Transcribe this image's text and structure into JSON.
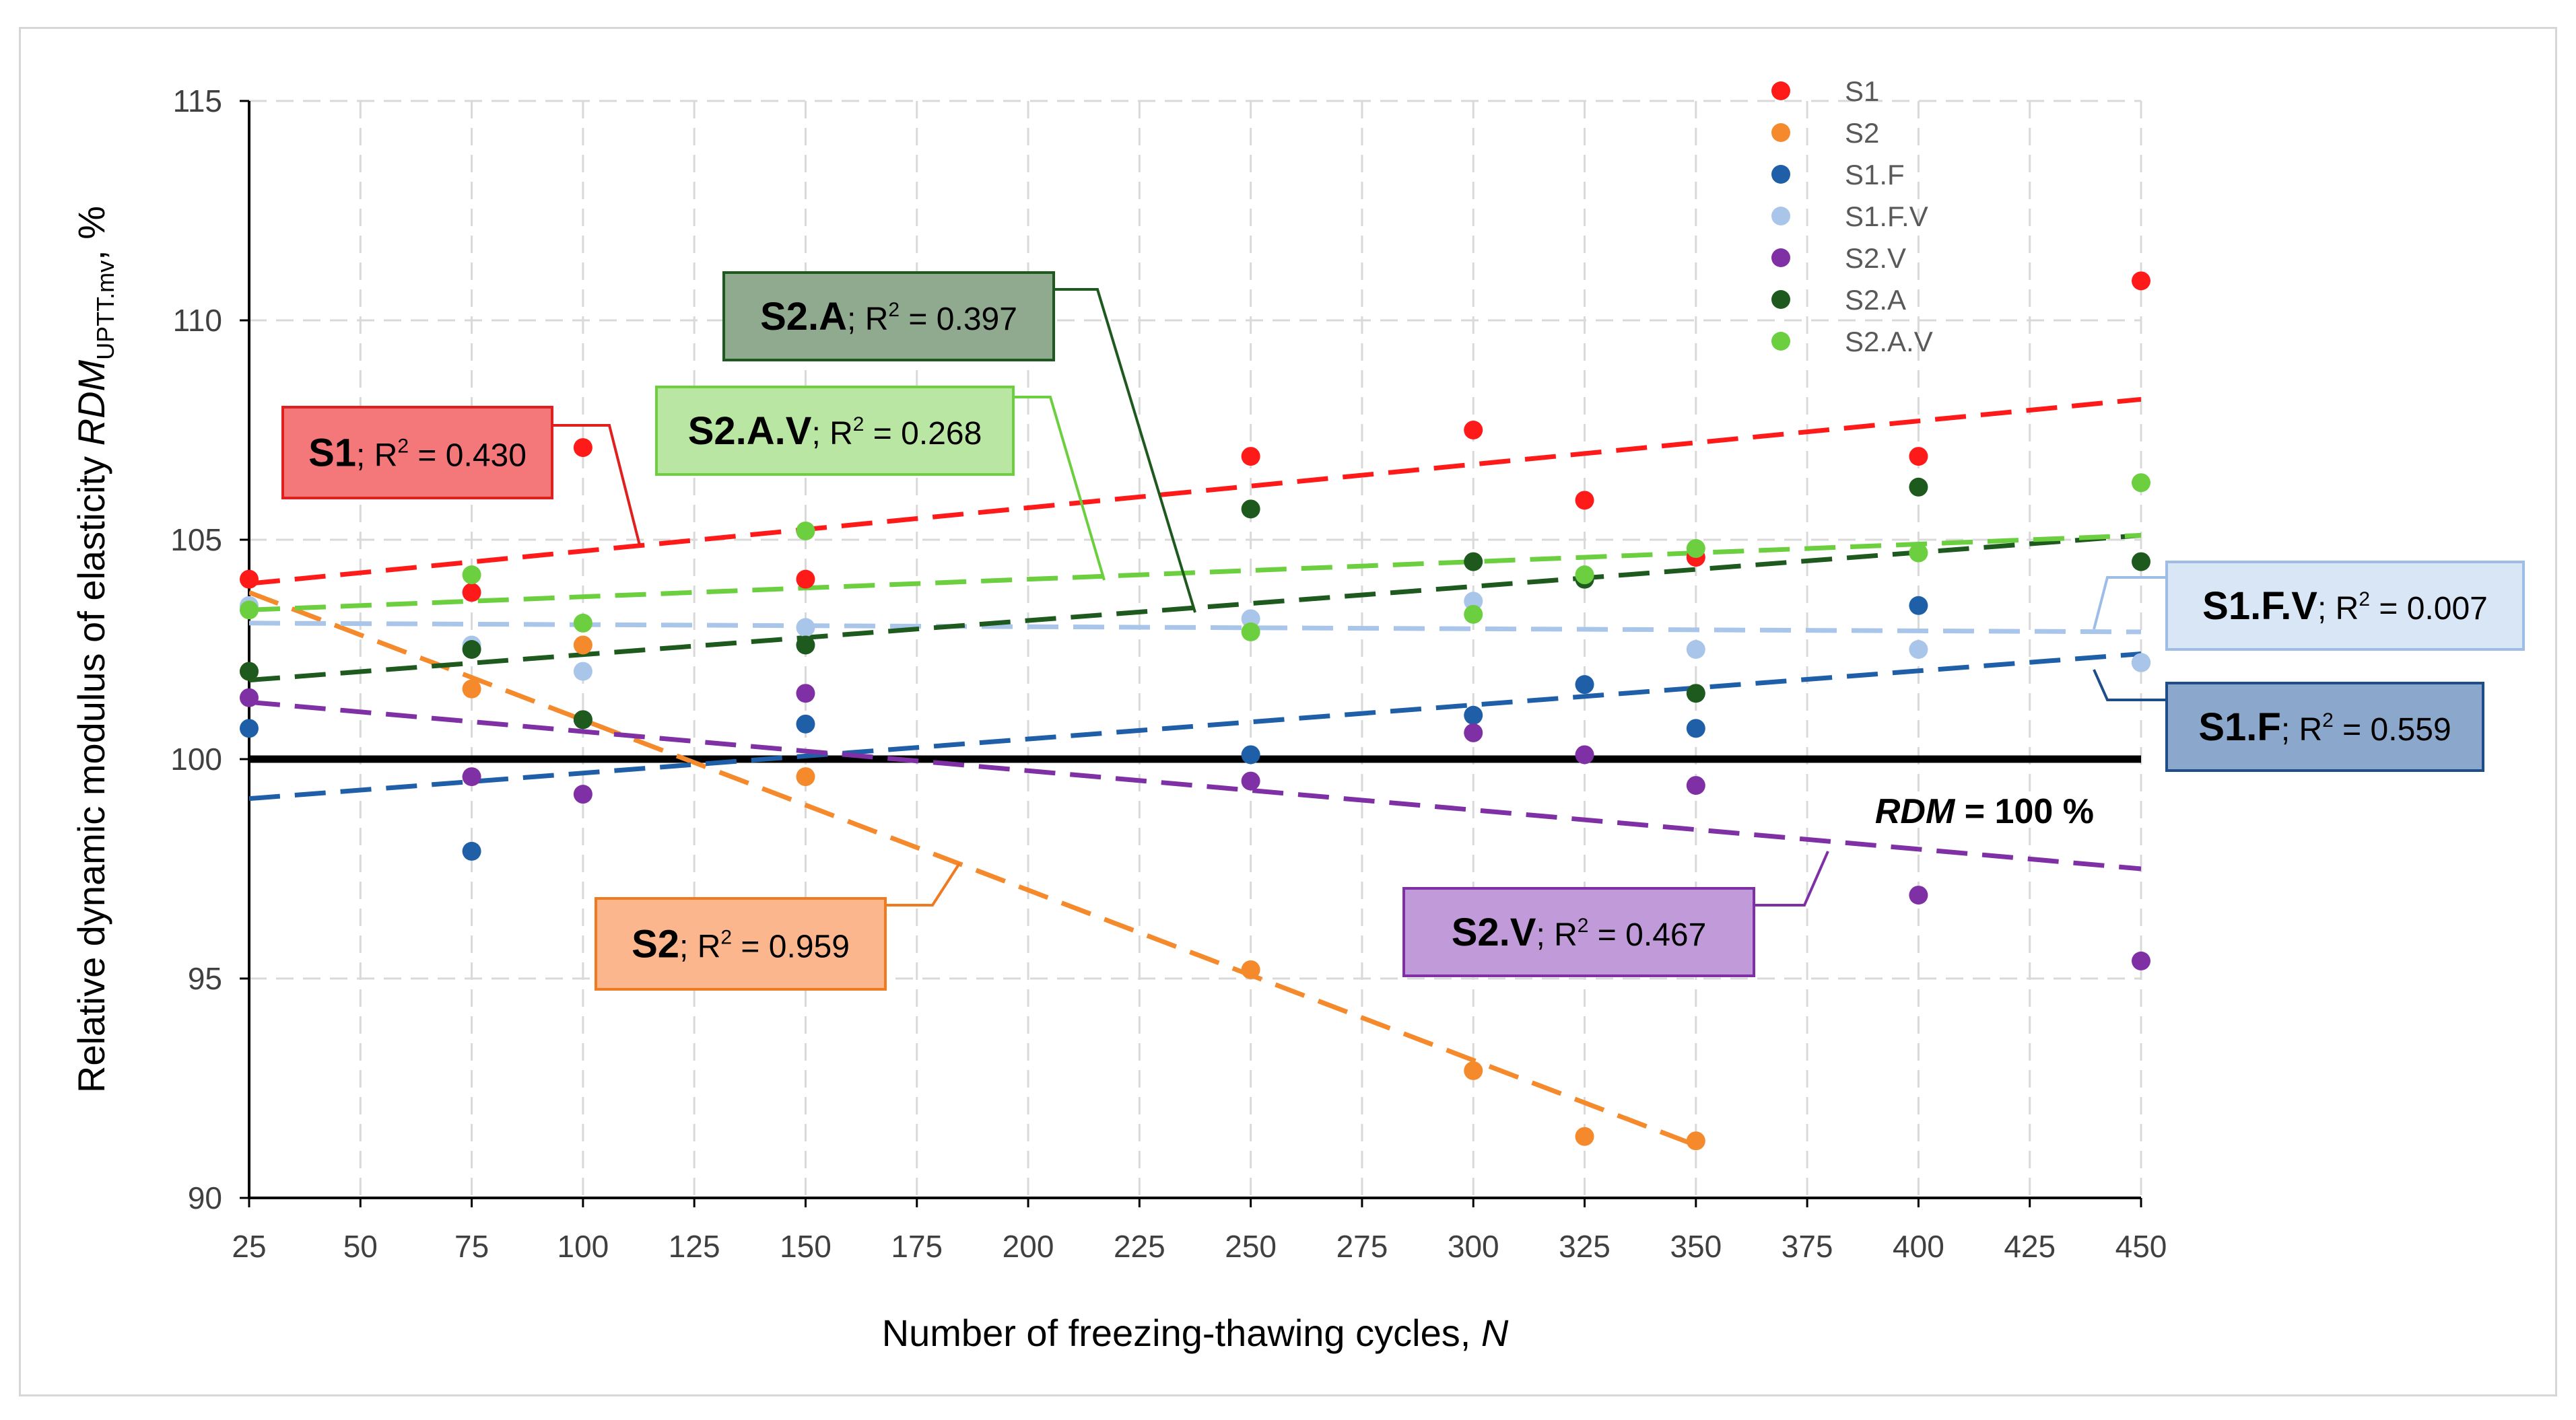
{
  "chart_data": {
    "type": "scatter",
    "xlabel": "Number of freezing-thawing cycles, ",
    "xlabel_var": "N",
    "ylabel_main": "Relative dynamic modulus of elasticity ",
    "ylabel_var": "RDM",
    "ylabel_sub": "UPTT.mv",
    "ylabel_tail": ", %",
    "xlim": [
      25,
      450
    ],
    "ylim": [
      90,
      115
    ],
    "x_ticks": [
      25,
      50,
      75,
      100,
      125,
      150,
      175,
      200,
      225,
      250,
      275,
      300,
      325,
      350,
      375,
      400,
      425,
      450
    ],
    "y_ticks": [
      90,
      95,
      100,
      105,
      110,
      115
    ],
    "grid": true,
    "legend_position": "top-right",
    "reference_line": {
      "y": 100,
      "label_var": "RDM",
      "label_rest": " = 100 %"
    },
    "series": [
      {
        "name": "S1",
        "color": "#ff1a1a",
        "points": [
          [
            25,
            104.1
          ],
          [
            75,
            103.8
          ],
          [
            100,
            107.1
          ],
          [
            150,
            104.1
          ],
          [
            250,
            106.9
          ],
          [
            300,
            107.5
          ],
          [
            325,
            105.9
          ],
          [
            350,
            104.6
          ],
          [
            400,
            106.9
          ],
          [
            450,
            110.9
          ]
        ],
        "trend": [
          [
            25,
            104.0
          ],
          [
            450,
            108.2
          ]
        ],
        "annotation": {
          "name": "S1",
          "r2_text": "; R",
          "r2_sup": "2",
          "r2_value": " = 0.430",
          "fill": "#f4777a",
          "border": "#e01f1f"
        }
      },
      {
        "name": "S2",
        "color": "#f58a2c",
        "points": [
          [
            25,
            102.0
          ],
          [
            75,
            101.6
          ],
          [
            100,
            102.6
          ],
          [
            150,
            99.6
          ],
          [
            250,
            95.2
          ],
          [
            300,
            92.9
          ],
          [
            325,
            91.4
          ],
          [
            350,
            91.3
          ]
        ],
        "trend": [
          [
            25,
            103.8
          ],
          [
            350,
            91.2
          ]
        ],
        "annotation": {
          "name": "S2",
          "r2_text": "; R",
          "r2_sup": "2",
          "r2_value": " = 0.959",
          "fill": "#fbb68e",
          "border": "#f07a20"
        }
      },
      {
        "name": "S1.F",
        "color": "#1f5fa8",
        "points": [
          [
            25,
            100.7
          ],
          [
            75,
            97.9
          ],
          [
            100,
            100.9
          ],
          [
            150,
            100.8
          ],
          [
            250,
            100.1
          ],
          [
            300,
            101.0
          ],
          [
            325,
            101.7
          ],
          [
            350,
            100.7
          ],
          [
            400,
            103.5
          ],
          [
            450,
            102.2
          ]
        ],
        "trend": [
          [
            25,
            99.1
          ],
          [
            450,
            102.4
          ]
        ],
        "annotation": {
          "name": "S1.F",
          "r2_text": "; R",
          "r2_sup": "2",
          "r2_value": " = 0.559",
          "fill": "#8ca7cc",
          "border": "#1f4d8a"
        }
      },
      {
        "name": "S1.F.V",
        "color": "#a9c6ea",
        "points": [
          [
            25,
            103.5
          ],
          [
            75,
            102.6
          ],
          [
            100,
            102.0
          ],
          [
            150,
            103.0
          ],
          [
            250,
            103.2
          ],
          [
            300,
            103.6
          ],
          [
            325,
            104.1
          ],
          [
            350,
            102.5
          ],
          [
            400,
            102.5
          ],
          [
            450,
            102.2
          ]
        ],
        "trend": [
          [
            25,
            103.1
          ],
          [
            450,
            102.9
          ]
        ],
        "annotation": {
          "name": "S1.F.V",
          "r2_text": "; R",
          "r2_sup": "2",
          "r2_value": " = 0.007",
          "fill": "#d9e6f5",
          "border": "#9dbde6"
        }
      },
      {
        "name": "S2.V",
        "color": "#7f30a5",
        "points": [
          [
            25,
            101.4
          ],
          [
            75,
            99.6
          ],
          [
            100,
            99.2
          ],
          [
            150,
            101.5
          ],
          [
            250,
            99.5
          ],
          [
            300,
            100.6
          ],
          [
            325,
            100.1
          ],
          [
            350,
            99.4
          ],
          [
            400,
            96.9
          ],
          [
            450,
            95.4
          ]
        ],
        "trend": [
          [
            25,
            101.3
          ],
          [
            450,
            97.5
          ]
        ],
        "annotation": {
          "name": "S2.V",
          "r2_text": "; R",
          "r2_sup": "2",
          "r2_value": " = 0.467",
          "fill": "#c19ad9",
          "border": "#7f30a5"
        }
      },
      {
        "name": "S2.A",
        "color": "#1e5a1e",
        "points": [
          [
            25,
            102.0
          ],
          [
            75,
            102.5
          ],
          [
            100,
            100.9
          ],
          [
            150,
            102.6
          ],
          [
            250,
            105.7
          ],
          [
            300,
            104.5
          ],
          [
            325,
            104.1
          ],
          [
            350,
            101.5
          ],
          [
            400,
            106.2
          ],
          [
            450,
            104.5
          ]
        ],
        "trend": [
          [
            25,
            101.8
          ],
          [
            450,
            105.1
          ]
        ],
        "annotation": {
          "name": "S2.A",
          "r2_text": "; R",
          "r2_sup": "2",
          "r2_value": " = 0.397",
          "fill": "#8faa8f",
          "border": "#1e5a1e"
        }
      },
      {
        "name": "S2.A.V",
        "color": "#6ccf3f",
        "points": [
          [
            25,
            103.4
          ],
          [
            75,
            104.2
          ],
          [
            100,
            103.1
          ],
          [
            150,
            105.2
          ],
          [
            250,
            102.9
          ],
          [
            300,
            103.3
          ],
          [
            325,
            104.2
          ],
          [
            350,
            104.8
          ],
          [
            400,
            104.7
          ],
          [
            450,
            106.3
          ]
        ],
        "trend": [
          [
            25,
            103.4
          ],
          [
            450,
            105.1
          ]
        ],
        "annotation": {
          "name": "S2.A.V",
          "r2_text": "; R",
          "r2_sup": "2",
          "r2_value": " = 0.268",
          "fill": "#b9e6a2",
          "border": "#6ccf3f"
        }
      }
    ]
  }
}
